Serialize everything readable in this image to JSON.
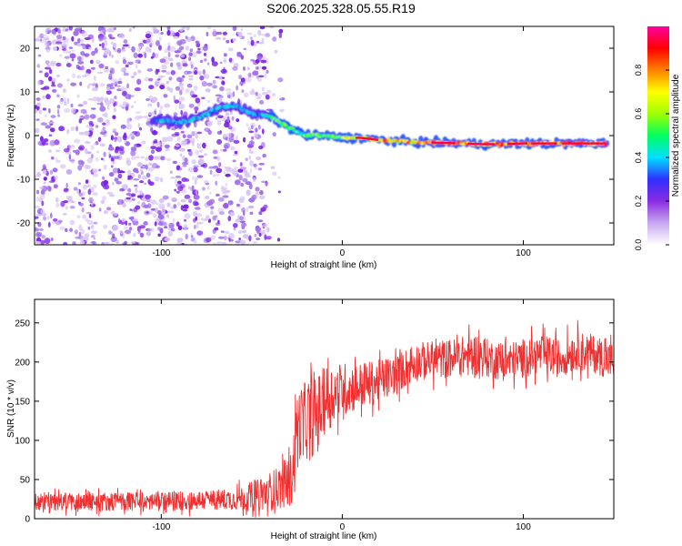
{
  "title": "S206.2025.328.05.55.R19",
  "colors": {
    "spec_background": "#ffffff",
    "spec_speckle": "#8a2be2",
    "snr_line": "#f03030"
  },
  "chart_data": [
    {
      "type": "heatmap",
      "name": "spectrogram",
      "title": "S206.2025.328.05.55.R19",
      "xlabel": "Height of straight line (km)",
      "ylabel": "Frequency (Hz)",
      "xlim": [
        -170,
        150
      ],
      "ylim": [
        -25,
        25
      ],
      "xticks": [
        -100,
        0,
        100
      ],
      "xtick_labels": [
        "-100",
        "0",
        "100"
      ],
      "yticks": [
        -20,
        -10,
        0,
        10,
        20
      ],
      "ytick_labels": [
        "-20",
        "-10",
        "0",
        "10",
        "20"
      ],
      "noise_region_x": [
        -170,
        -42
      ],
      "signal_ridge": [
        {
          "x": -100,
          "y": 3.5
        },
        {
          "x": -90,
          "y": 3.0
        },
        {
          "x": -80,
          "y": 4.0
        },
        {
          "x": -70,
          "y": 6.0
        },
        {
          "x": -60,
          "y": 7.0
        },
        {
          "x": -50,
          "y": 5.0
        },
        {
          "x": -40,
          "y": 4.5
        },
        {
          "x": -30,
          "y": 2.0
        },
        {
          "x": -20,
          "y": 0.0
        },
        {
          "x": -10,
          "y": 0.0
        },
        {
          "x": 0,
          "y": -0.5
        },
        {
          "x": 10,
          "y": -0.5
        },
        {
          "x": 20,
          "y": -1.0
        },
        {
          "x": 40,
          "y": -1.5
        },
        {
          "x": 60,
          "y": -1.7
        },
        {
          "x": 80,
          "y": -2.0
        },
        {
          "x": 100,
          "y": -1.8
        },
        {
          "x": 120,
          "y": -1.8
        },
        {
          "x": 145,
          "y": -1.8
        }
      ],
      "colorbar": {
        "label": "Normalized spectral amplitude",
        "range": [
          0,
          1
        ],
        "ticks": [
          0.0,
          0.2,
          0.4,
          0.6,
          0.8
        ],
        "tick_labels": [
          "0.0",
          "0.2",
          "0.4",
          "0.6",
          "0.8"
        ],
        "colors": [
          "#ffffff",
          "#c8a8f0",
          "#8a2be2",
          "#3030ff",
          "#00e0ff",
          "#00ff60",
          "#a0ff00",
          "#ffff00",
          "#ff8000",
          "#ff0000",
          "#ff00a0"
        ]
      }
    },
    {
      "type": "line",
      "name": "snr",
      "xlabel": "Height of straight line (km)",
      "ylabel": "SNR (10 * v/v)",
      "xlim": [
        -170,
        150
      ],
      "ylim": [
        0,
        280
      ],
      "xticks": [
        -100,
        0,
        100
      ],
      "xtick_labels": [
        "-100",
        "0",
        "100"
      ],
      "yticks": [
        0,
        50,
        100,
        150,
        200,
        250
      ],
      "ytick_labels": [
        "0",
        "50",
        "100",
        "150",
        "200",
        "250"
      ],
      "series": [
        {
          "name": "SNR envelope",
          "x": [
            -170,
            -100,
            -60,
            -45,
            -35,
            -28,
            -25,
            -20,
            -15,
            -10,
            -5,
            0,
            10,
            20,
            30,
            40,
            60,
            75,
            80,
            90,
            100,
            110,
            120,
            130,
            140,
            150
          ],
          "y": [
            22,
            22,
            25,
            30,
            40,
            50,
            120,
            125,
            130,
            150,
            160,
            165,
            170,
            175,
            185,
            200,
            205,
            210,
            205,
            200,
            205,
            210,
            205,
            215,
            210,
            200
          ],
          "spread": [
            12,
            12,
            14,
            22,
            28,
            35,
            45,
            50,
            50,
            45,
            40,
            35,
            30,
            28,
            25,
            25,
            25,
            28,
            25,
            25,
            25,
            25,
            25,
            25,
            25,
            25
          ]
        }
      ]
    }
  ]
}
